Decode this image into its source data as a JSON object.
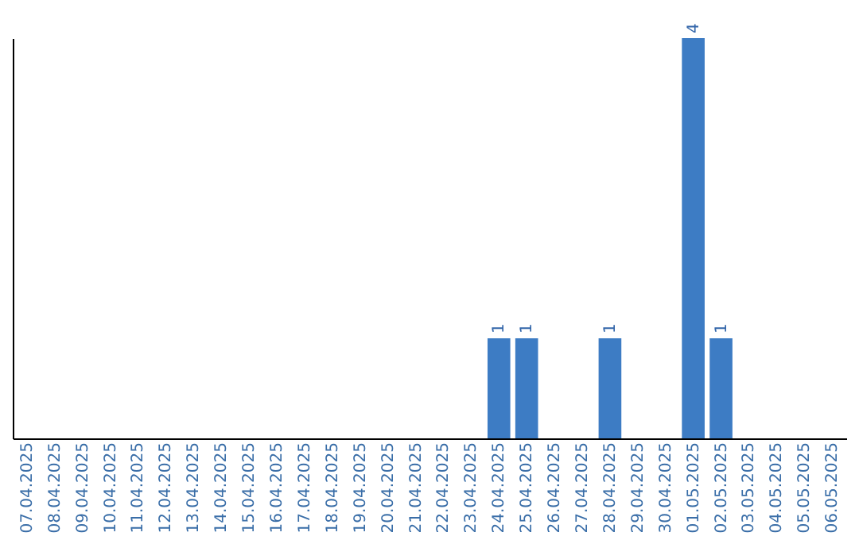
{
  "chart_data": {
    "type": "bar",
    "categories": [
      "07.04.2025",
      "08.04.2025",
      "09.04.2025",
      "10.04.2025",
      "11.04.2025",
      "12.04.2025",
      "13.04.2025",
      "14.04.2025",
      "15.04.2025",
      "16.04.2025",
      "17.04.2025",
      "18.04.2025",
      "19.04.2025",
      "20.04.2025",
      "21.04.2025",
      "22.04.2025",
      "23.04.2025",
      "24.04.2025",
      "25.04.2025",
      "26.04.2025",
      "27.04.2025",
      "28.04.2025",
      "29.04.2025",
      "30.04.2025",
      "01.05.2025",
      "02.05.2025",
      "03.05.2025",
      "04.05.2025",
      "05.05.2025",
      "06.05.2025"
    ],
    "values": [
      null,
      null,
      null,
      null,
      null,
      null,
      null,
      null,
      null,
      null,
      null,
      null,
      null,
      null,
      null,
      null,
      null,
      1,
      1,
      null,
      null,
      1,
      null,
      null,
      4,
      1,
      null,
      null,
      null,
      null
    ],
    "data_labels": true,
    "color": "#3d7cc4",
    "tick_labels": "x",
    "grid": false
  }
}
